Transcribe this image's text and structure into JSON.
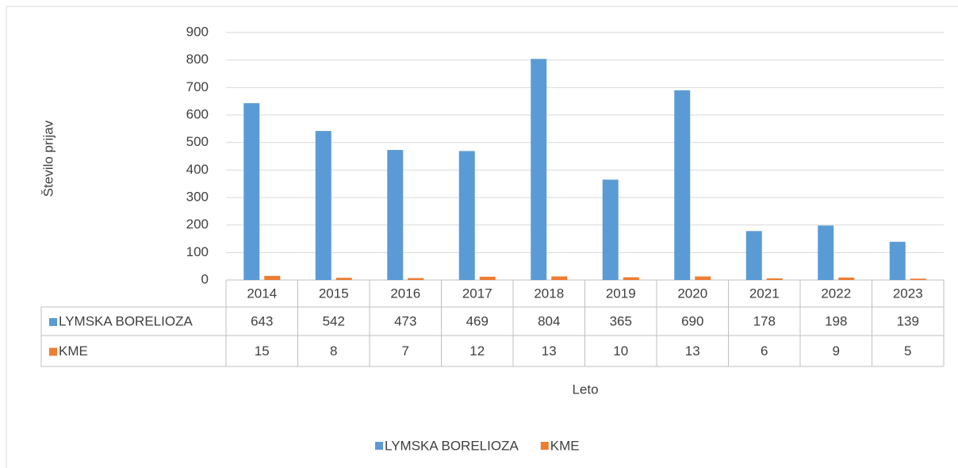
{
  "chart_data": {
    "type": "bar",
    "y_label": "Število prijav",
    "x_label": "Leto",
    "categories": [
      "2014",
      "2015",
      "2016",
      "2017",
      "2018",
      "2019",
      "2020",
      "2021",
      "2022",
      "2023"
    ],
    "series": [
      {
        "name": "LYMSKA BORELIOZA",
        "color": "#5b9bd5",
        "values": [
          643,
          542,
          473,
          469,
          804,
          365,
          690,
          178,
          198,
          139
        ]
      },
      {
        "name": "KME",
        "color": "#ed7d31",
        "values": [
          15,
          8,
          7,
          12,
          13,
          10,
          13,
          6,
          9,
          5
        ]
      }
    ],
    "ylim": [
      0,
      900
    ],
    "yticks": [
      0,
      100,
      200,
      300,
      400,
      500,
      600,
      700,
      800,
      900
    ],
    "grid": true,
    "legend": "bottom"
  }
}
